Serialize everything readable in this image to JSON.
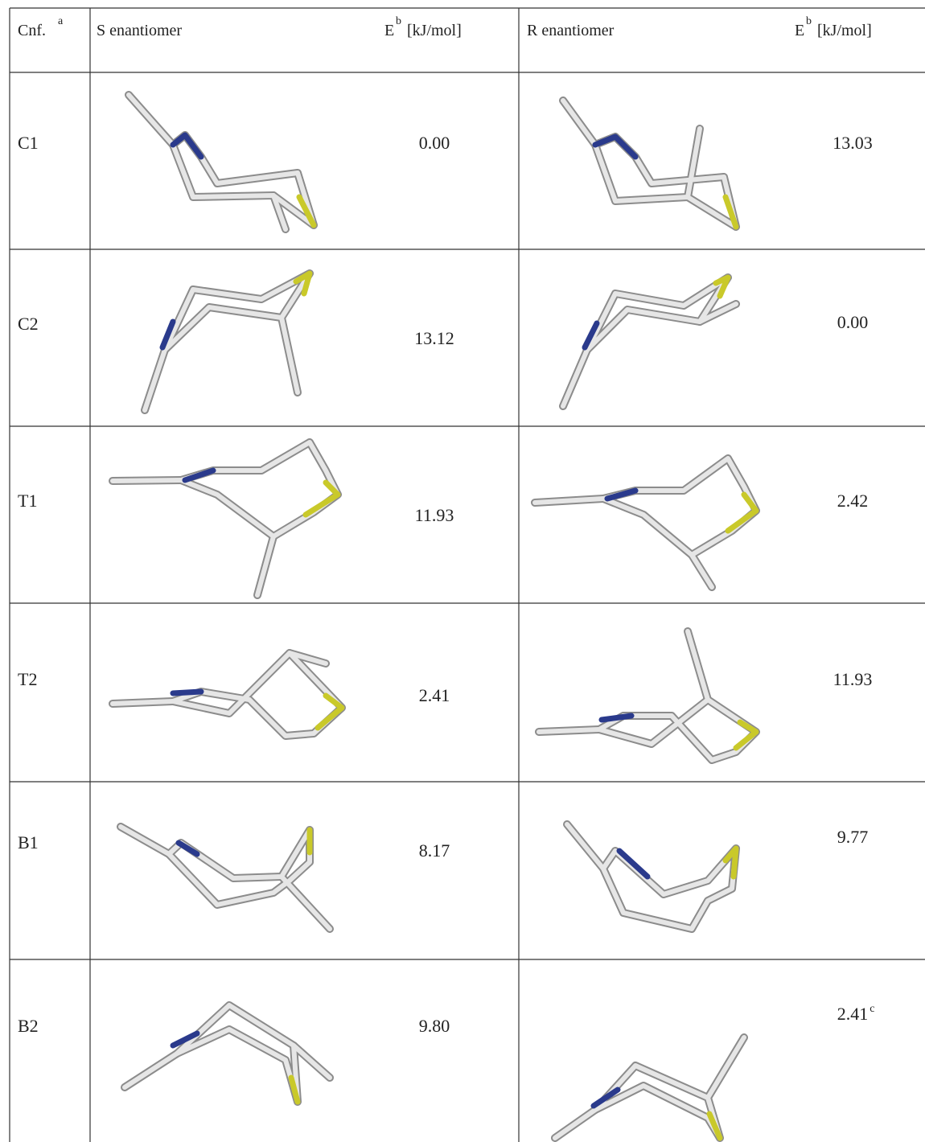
{
  "header": {
    "cnf": "Cnf.",
    "cnf_note": "a",
    "s_title": "S enantiomer",
    "s_energy": "E",
    "s_energy_note": "b",
    "s_energy_unit": "[kJ/mol]",
    "r_title": "R enantiomer",
    "r_energy": "E",
    "r_energy_note": "b",
    "r_energy_unit": "[kJ/mol]"
  },
  "rows": [
    {
      "cnf": "C1",
      "s_energy": "0.00",
      "r_energy": "13.03"
    },
    {
      "cnf": "C2",
      "s_energy": "13.12",
      "r_energy": "0.00"
    },
    {
      "cnf": "T1",
      "s_energy": "11.93",
      "r_energy": "2.42"
    },
    {
      "cnf": "T2",
      "s_energy": "2.41",
      "r_energy": "11.93"
    },
    {
      "cnf": "B1",
      "s_energy": "8.17",
      "r_energy": "9.77"
    },
    {
      "cnf": "B2",
      "s_energy": "9.80",
      "r_energy": "2.41",
      "r_energy_note": "c"
    }
  ]
}
